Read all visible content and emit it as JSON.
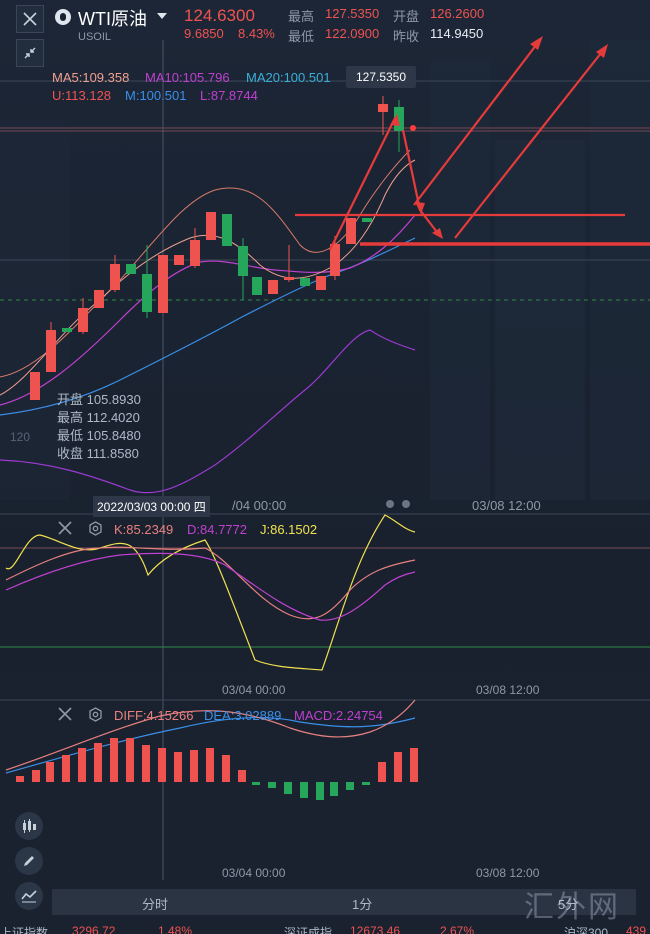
{
  "header": {
    "symbol_name": "WTI原油",
    "symbol_code": "USOIL",
    "price": "124.6300",
    "change": "9.6850",
    "change_pct": "8.43%",
    "high_label": "最高",
    "high_value": "127.5350",
    "open_label": "开盘",
    "open_value": "126.2600",
    "low_label": "最低",
    "low_value": "122.0900",
    "prev_close_label": "昨收",
    "prev_close_value": "114.9450"
  },
  "main_chart": {
    "ma5": "MA5:109.358",
    "ma10": "MA10:105.796",
    "ma20": "MA20:100.501",
    "boll_u": "U:113.128",
    "boll_m": "M:100.501",
    "boll_l": "L:87.8744",
    "price_popup": "127.5350",
    "axis_left_label": "120",
    "ohlc": {
      "open": "开盘 105.8930",
      "high": "最高 112.4020",
      "low": "最低 105.8480",
      "close": "收盘 111.8580"
    },
    "date_tooltip": "2022/03/03 00:00 四",
    "x_labels": [
      "/04 00:00",
      "03/08 12:00"
    ]
  },
  "kdj": {
    "k": "K:85.2349",
    "d": "D:84.7772",
    "j": "J:86.1502",
    "x_labels": [
      "03/04 00:00",
      "03/08 12:00"
    ]
  },
  "macd": {
    "diff": "DIFF:4.15266",
    "dea": "DEA:3.02889",
    "macd": "MACD:2.24754",
    "x_labels": [
      "03/04 00:00",
      "03/08 12:00"
    ]
  },
  "period_tabs": [
    "分时",
    "1分",
    "5分"
  ],
  "ticker": [
    {
      "name": "上证指数",
      "value": "3296.72",
      "pct": "1.48%",
      "color": "#ef5350"
    },
    {
      "name": "深证成指",
      "value": "12673.46",
      "pct": "2.67%",
      "color": "#ef5350"
    },
    {
      "name": "沪深300",
      "value": "439",
      "pct": "",
      "color": "#ef5350"
    }
  ],
  "watermark": "汇外网",
  "icons": {
    "close": "close-icon",
    "fullscreen": "collapse-icon",
    "dropdown": "caret-down-icon",
    "candle": "candlestick-icon",
    "draw": "pencil-icon",
    "indicator": "indicator-icon",
    "settings": "gear-icon",
    "remove": "close-icon"
  },
  "colors": {
    "up": "#ef5350",
    "down": "#26a65b",
    "ma5": "#f0a090",
    "ma10": "#c040d0",
    "ma20": "#3a8fe8"
  }
}
